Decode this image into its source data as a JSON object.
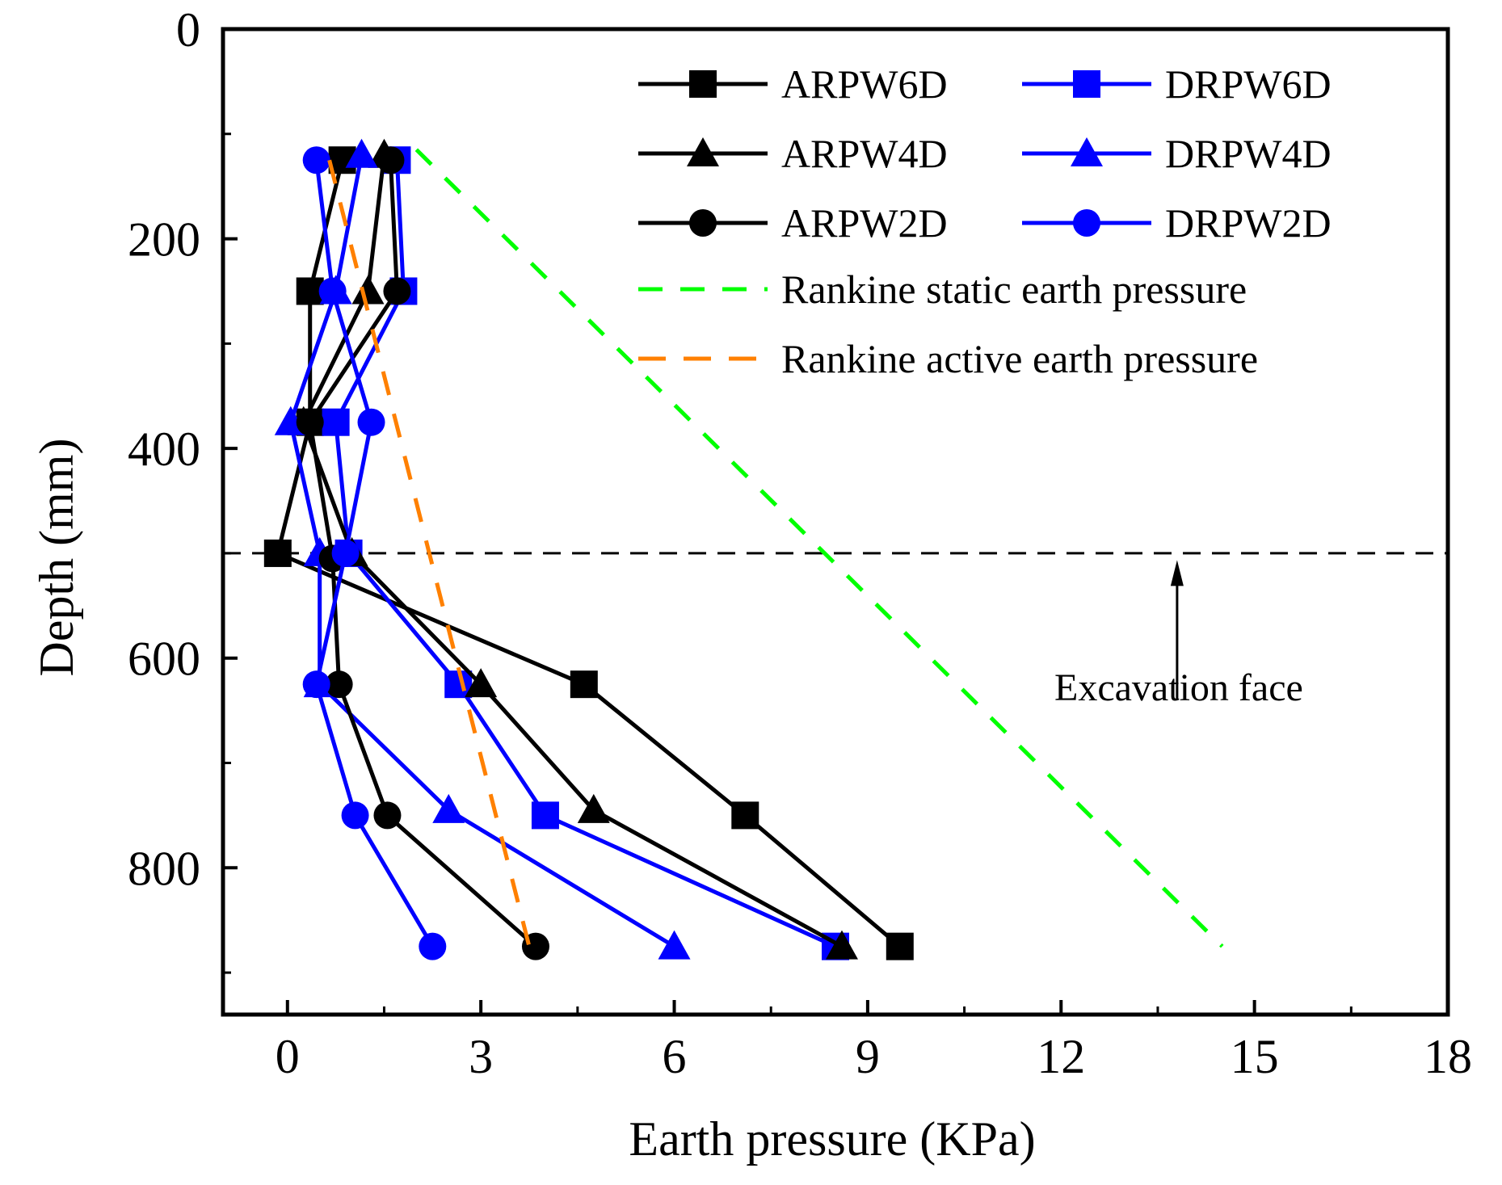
{
  "chart_data": {
    "type": "line",
    "xlabel": "Earth pressure (KPa)",
    "ylabel": "Depth (mm)",
    "xlim": [
      -1,
      18
    ],
    "ylim": [
      0,
      940
    ],
    "y_inverted": true,
    "x_ticks": [
      0,
      3,
      6,
      9,
      12,
      15,
      18
    ],
    "y_ticks": [
      0,
      200,
      400,
      600,
      800
    ],
    "x_tick_labels": [
      "0",
      "3",
      "6",
      "9",
      "12",
      "15",
      "18"
    ],
    "y_tick_labels": [
      "0",
      "200",
      "400",
      "600",
      "800"
    ],
    "legend_position": "top-right",
    "series": [
      {
        "name": "ARPW6D",
        "color": "#000000",
        "marker": "square",
        "style": "solid",
        "points": [
          [
            0.85,
            125
          ],
          [
            0.35,
            250
          ],
          [
            0.35,
            375
          ],
          [
            -0.15,
            500
          ],
          [
            4.6,
            625
          ],
          [
            7.1,
            750
          ],
          [
            9.5,
            875
          ]
        ]
      },
      {
        "name": "DRPW6D",
        "color": "#0000ff",
        "marker": "square",
        "style": "solid",
        "points": [
          [
            1.7,
            125
          ],
          [
            1.8,
            250
          ],
          [
            0.75,
            375
          ],
          [
            0.95,
            500
          ],
          [
            2.65,
            625
          ],
          [
            4.0,
            750
          ],
          [
            8.5,
            875
          ]
        ]
      },
      {
        "name": "ARPW4D",
        "color": "#000000",
        "marker": "triangle",
        "style": "solid",
        "points": [
          [
            1.5,
            120
          ],
          [
            1.25,
            250
          ],
          [
            0.25,
            375
          ],
          [
            1.0,
            500
          ],
          [
            3.0,
            625
          ],
          [
            4.75,
            745
          ],
          [
            8.6,
            875
          ]
        ]
      },
      {
        "name": "DRPW4D",
        "color": "#0000ff",
        "marker": "triangle",
        "style": "solid",
        "points": [
          [
            1.15,
            120
          ],
          [
            0.75,
            250
          ],
          [
            0.05,
            375
          ],
          [
            0.5,
            500
          ],
          [
            0.5,
            625
          ],
          [
            2.5,
            745
          ],
          [
            6.0,
            875
          ]
        ]
      },
      {
        "name": "ARPW2D",
        "color": "#000000",
        "marker": "circle",
        "style": "solid",
        "points": [
          [
            1.6,
            125
          ],
          [
            1.7,
            250
          ],
          [
            0.35,
            375
          ],
          [
            0.7,
            505
          ],
          [
            0.8,
            625
          ],
          [
            1.55,
            750
          ],
          [
            3.85,
            875
          ]
        ]
      },
      {
        "name": "DRPW2D",
        "color": "#0000ff",
        "marker": "circle",
        "style": "solid",
        "points": [
          [
            0.45,
            125
          ],
          [
            0.7,
            250
          ],
          [
            1.3,
            375
          ],
          [
            0.9,
            500
          ],
          [
            0.45,
            625
          ],
          [
            1.05,
            750
          ],
          [
            2.25,
            875
          ]
        ]
      },
      {
        "name": "Rankine static earth pressure",
        "color": "#00ff00",
        "marker": "none",
        "style": "dashed",
        "points": [
          [
            2.0,
            115
          ],
          [
            14.5,
            875
          ]
        ]
      },
      {
        "name": "Rankine active earth pressure",
        "color": "#ff8000",
        "marker": "none",
        "style": "dashed",
        "points": [
          [
            0.65,
            125
          ],
          [
            2.2,
            500
          ],
          [
            3.75,
            875
          ]
        ]
      }
    ],
    "reference_line": {
      "y": 500,
      "style": "dashed",
      "color": "#000000"
    },
    "annotation": {
      "text": "Excavation face",
      "arrow_x": 13.8,
      "arrow_from_y": 640,
      "arrow_to_y": 505
    }
  }
}
